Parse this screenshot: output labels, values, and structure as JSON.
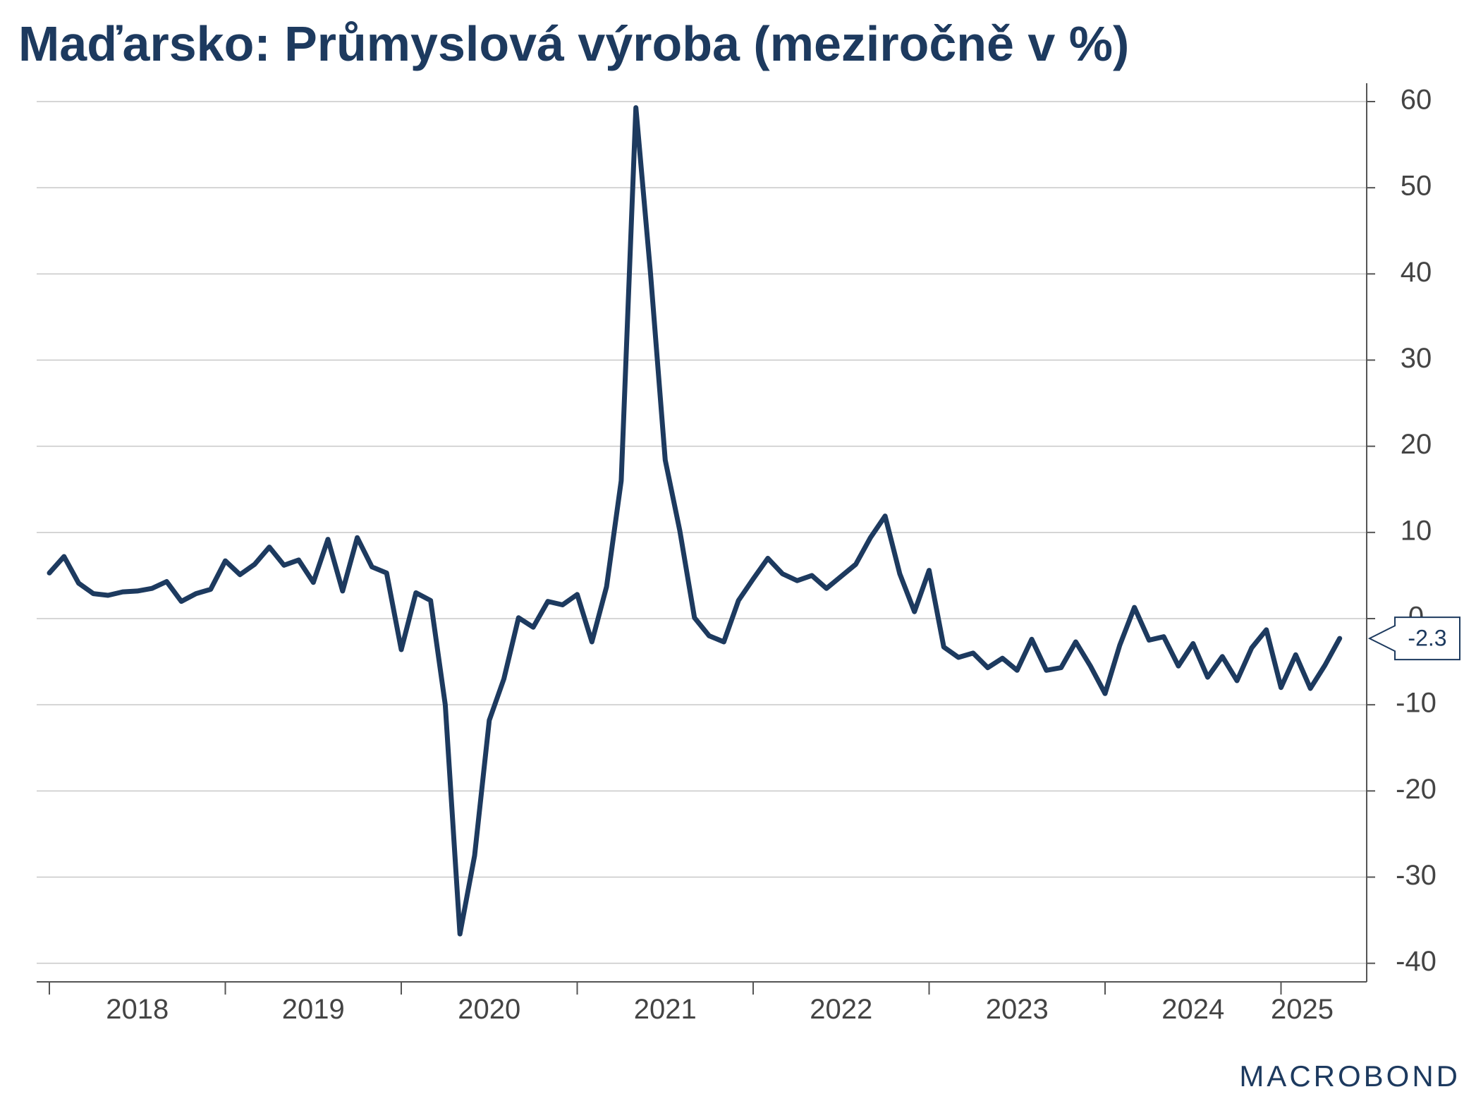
{
  "title": "Maďarsko: Průmyslová výroba (meziročně v %)",
  "brand": "MACROBOND",
  "colors": {
    "line": "#1d3a5f",
    "grid": "#c8c8c8",
    "text": "#444444"
  },
  "chart_data": {
    "type": "line",
    "title": "Maďarsko: Průmyslová výroba (meziročně v %)",
    "xlabel": "",
    "ylabel": "",
    "x_axis": "date",
    "ylim": [
      -42,
      60
    ],
    "y_axis_position": "right",
    "y_ticks": [
      60,
      50,
      40,
      30,
      20,
      10,
      0,
      -10,
      -20,
      -30,
      -40
    ],
    "x_tick_labels": [
      "2018",
      "2019",
      "2020",
      "2021",
      "2022",
      "2023",
      "2024",
      "2025"
    ],
    "grid": true,
    "last_value_label": "-2.3",
    "series": [
      {
        "color": "#1d3a5f",
        "points": [
          [
            "2018-01",
            5.3
          ],
          [
            "2018-02",
            7.2
          ],
          [
            "2018-03",
            4.1
          ],
          [
            "2018-04",
            2.9
          ],
          [
            "2018-05",
            2.7
          ],
          [
            "2018-06",
            3.1
          ],
          [
            "2018-07",
            3.2
          ],
          [
            "2018-08",
            3.5
          ],
          [
            "2018-09",
            4.3
          ],
          [
            "2018-10",
            2.0
          ],
          [
            "2018-11",
            2.9
          ],
          [
            "2018-12",
            3.4
          ],
          [
            "2019-01",
            6.7
          ],
          [
            "2019-02",
            5.1
          ],
          [
            "2019-03",
            6.3
          ],
          [
            "2019-04",
            8.3
          ],
          [
            "2019-05",
            6.2
          ],
          [
            "2019-06",
            6.8
          ],
          [
            "2019-07",
            4.2
          ],
          [
            "2019-08",
            9.2
          ],
          [
            "2019-09",
            3.2
          ],
          [
            "2019-10",
            9.4
          ],
          [
            "2019-11",
            6.0
          ],
          [
            "2019-12",
            5.3
          ],
          [
            "2020-01",
            -3.6
          ],
          [
            "2020-02",
            3.0
          ],
          [
            "2020-03",
            2.1
          ],
          [
            "2020-04",
            -10.0
          ],
          [
            "2020-05",
            -36.6
          ],
          [
            "2020-06",
            -27.5
          ],
          [
            "2020-07",
            -11.8
          ],
          [
            "2020-08",
            -7.0
          ],
          [
            "2020-09",
            0.1
          ],
          [
            "2020-10",
            -1.0
          ],
          [
            "2020-11",
            2.0
          ],
          [
            "2020-12",
            1.6
          ],
          [
            "2021-01",
            2.8
          ],
          [
            "2021-02",
            -2.7
          ],
          [
            "2021-03",
            3.7
          ],
          [
            "2021-04",
            16.0
          ],
          [
            "2021-05",
            59.3
          ],
          [
            "2021-06",
            40.0
          ],
          [
            "2021-07",
            18.4
          ],
          [
            "2021-08",
            10.2
          ],
          [
            "2021-09",
            0.1
          ],
          [
            "2021-10",
            -2.0
          ],
          [
            "2021-11",
            -2.7
          ],
          [
            "2021-12",
            2.1
          ],
          [
            "2022-01",
            4.6
          ],
          [
            "2022-02",
            7.0
          ],
          [
            "2022-03",
            5.2
          ],
          [
            "2022-04",
            4.4
          ],
          [
            "2022-05",
            5.0
          ],
          [
            "2022-06",
            3.5
          ],
          [
            "2022-07",
            4.9
          ],
          [
            "2022-08",
            6.3
          ],
          [
            "2022-09",
            9.4
          ],
          [
            "2022-10",
            11.9
          ],
          [
            "2022-11",
            5.2
          ],
          [
            "2022-12",
            0.8
          ],
          [
            "2023-01",
            5.6
          ],
          [
            "2023-02",
            -3.3
          ],
          [
            "2023-03",
            -4.5
          ],
          [
            "2023-04",
            -4.0
          ],
          [
            "2023-05",
            -5.7
          ],
          [
            "2023-06",
            -4.6
          ],
          [
            "2023-07",
            -6.0
          ],
          [
            "2023-08",
            -2.4
          ],
          [
            "2023-09",
            -6.0
          ],
          [
            "2023-10",
            -5.7
          ],
          [
            "2023-11",
            -2.7
          ],
          [
            "2023-12",
            -5.5
          ],
          [
            "2024-01",
            -8.7
          ],
          [
            "2024-02",
            -3.1
          ],
          [
            "2024-03",
            1.3
          ],
          [
            "2024-04",
            -2.5
          ],
          [
            "2024-05",
            -2.1
          ],
          [
            "2024-06",
            -5.5
          ],
          [
            "2024-07",
            -2.9
          ],
          [
            "2024-08",
            -6.8
          ],
          [
            "2024-09",
            -4.4
          ],
          [
            "2024-10",
            -7.2
          ],
          [
            "2024-11",
            -3.4
          ],
          [
            "2024-12",
            -1.3
          ],
          [
            "2025-01",
            -8.0
          ],
          [
            "2025-02",
            -4.2
          ],
          [
            "2025-03",
            -8.1
          ],
          [
            "2025-04",
            -5.4
          ],
          [
            "2025-05",
            -2.3
          ]
        ]
      }
    ]
  }
}
